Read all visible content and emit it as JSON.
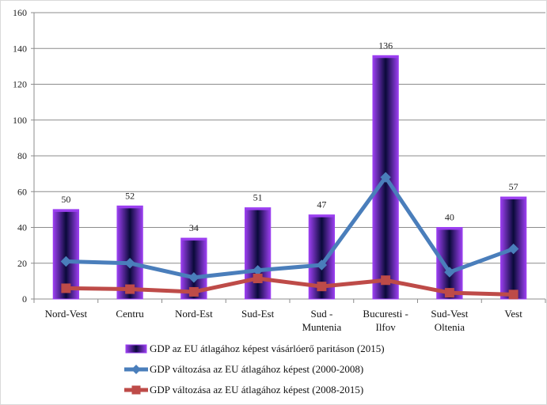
{
  "chart_data": {
    "type": "bar",
    "categories": [
      [
        "Nord-Vest"
      ],
      [
        "Centru"
      ],
      [
        "Nord-Est"
      ],
      [
        "Sud-Est"
      ],
      [
        "Sud -",
        "Muntenia"
      ],
      [
        "Bucuresti -",
        "Ilfov"
      ],
      [
        "Sud-Vest",
        "Oltenia"
      ],
      [
        "Vest"
      ]
    ],
    "ylim": [
      0,
      160
    ],
    "yticks": [
      0,
      20,
      40,
      60,
      80,
      100,
      120,
      140,
      160
    ],
    "grid": true,
    "legend_position": "bottom",
    "series": [
      {
        "name": "GDP az EU átlagához képest vásárlóerő paritáson (2015)",
        "kind": "bar",
        "values": [
          50,
          52,
          34,
          51,
          47,
          136,
          40,
          57
        ],
        "data_labels": [
          "50",
          "52",
          "34",
          "51",
          "47",
          "136",
          "40",
          "57"
        ],
        "color": "#3b1fd1",
        "color_dark": "#0a0a3a",
        "color_light": "#9b3ff0"
      },
      {
        "name": "GDP változása az EU átlagához képest (2000-2008)",
        "kind": "line",
        "marker": "diamond",
        "values": [
          21,
          20,
          12,
          16,
          19,
          68,
          15,
          28
        ],
        "color": "#4a7ebb"
      },
      {
        "name": "GDP változása az EU átlagához képest (2008-2015)",
        "kind": "line",
        "marker": "square",
        "values": [
          6,
          5.5,
          4,
          11.5,
          7,
          10.5,
          3.5,
          2.5
        ],
        "color": "#be4b48"
      }
    ]
  }
}
